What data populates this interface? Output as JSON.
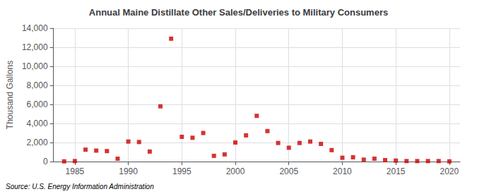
{
  "chart_data": {
    "type": "scatter",
    "title": "Annual Maine Distillate Other Sales/Deliveries to Military Consumers",
    "ylabel": "Thousand Gallons",
    "source": "Source: U.S. Energy Information Administration",
    "color": "#cc0000",
    "marker": "square",
    "x": [
      1984,
      1985,
      1986,
      1987,
      1988,
      1989,
      1990,
      1991,
      1992,
      1993,
      1994,
      1995,
      1996,
      1997,
      1998,
      1999,
      2000,
      2001,
      2002,
      2003,
      2004,
      2005,
      2006,
      2007,
      2008,
      2009,
      2010,
      2011,
      2012,
      2013,
      2014,
      2015,
      2016,
      2017,
      2018,
      2019,
      2020
    ],
    "values": [
      20,
      50,
      1250,
      1150,
      1100,
      300,
      2100,
      2050,
      1050,
      5800,
      12900,
      2600,
      2500,
      3000,
      600,
      750,
      2000,
      2750,
      4800,
      3200,
      1950,
      1450,
      1950,
      2100,
      1850,
      1200,
      400,
      450,
      200,
      300,
      150,
      100,
      50,
      50,
      50,
      50,
      20
    ],
    "xlim": [
      1983,
      2021
    ],
    "xticks": [
      1985,
      1990,
      1995,
      2000,
      2005,
      2010,
      2015,
      2020
    ],
    "ylim": [
      0,
      14000
    ],
    "yticks": [
      0,
      {
        "value": 2000,
        "label": "2,000"
      },
      {
        "value": 4000,
        "label": "4,000"
      },
      {
        "value": 6000,
        "label": "6,000"
      },
      {
        "value": 8000,
        "label": "8,000"
      },
      {
        "value": 10000,
        "label": "10,000"
      },
      {
        "value": 12000,
        "label": "12,000"
      },
      {
        "value": 14000,
        "label": "14,000"
      }
    ],
    "grid": true
  }
}
